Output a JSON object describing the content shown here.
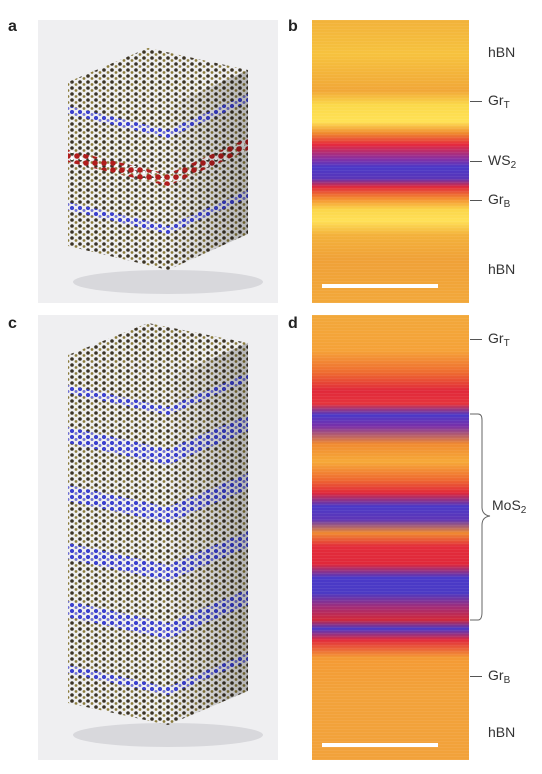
{
  "panels": {
    "a": {
      "letter": "a"
    },
    "b": {
      "letter": "b",
      "labels": {
        "hbn_top": "hBN",
        "gr_t": "Gr",
        "gr_t_sub": "T",
        "ws2": "WS",
        "ws2_sub": "2",
        "gr_b": "Gr",
        "gr_b_sub": "B",
        "hbn_bottom": "hBN"
      }
    },
    "c": {
      "letter": "c"
    },
    "d": {
      "letter": "d",
      "labels": {
        "gr_t": "Gr",
        "gr_t_sub": "T",
        "mos2": "MoS",
        "mos2_sub": "2",
        "gr_b": "Gr",
        "gr_b_sub": "B",
        "hbn_bottom": "hBN"
      }
    }
  },
  "colors": {
    "hbn_layer": "#f2b23a",
    "graphene": "#ffd84a",
    "ws2_band": "#4a39c8",
    "red_band": "#e02a3c",
    "schematic_bg": "#efeff1",
    "atom_dark": "#3b3324",
    "atom_blue": "#3a3fd0",
    "atom_red": "#b11d1d"
  }
}
